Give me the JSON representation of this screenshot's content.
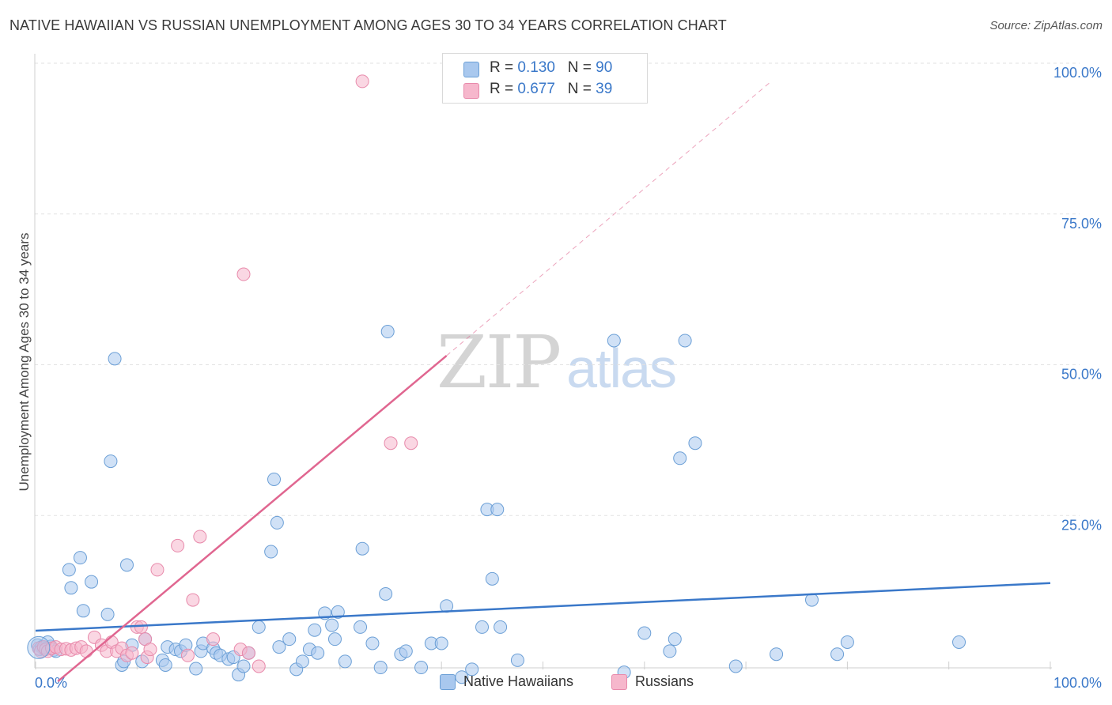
{
  "title": "NATIVE HAWAIIAN VS RUSSIAN UNEMPLOYMENT AMONG AGES 30 TO 34 YEARS CORRELATION CHART",
  "source": "Source: ZipAtlas.com",
  "watermark": {
    "zip": "ZIP",
    "atlas": "atlas"
  },
  "legend": {
    "r_label": "R =",
    "n_label": "N =",
    "rows": [
      {
        "name": "Native Hawaiians",
        "r": "0.130",
        "n": "90"
      },
      {
        "name": "Russians",
        "r": "0.677",
        "n": "39"
      }
    ]
  },
  "colors": {
    "blue_fill": "#a9c8ee",
    "blue_stroke": "#6b9fd6",
    "blue_line": "#3a78c9",
    "pink_fill": "#f6b7cc",
    "pink_stroke": "#e88aab",
    "pink_line": "#e06690",
    "grid": "#e2e2e2",
    "tick_label": "#3a78c9"
  },
  "chart_data": {
    "type": "scatter",
    "title": "NATIVE HAWAIIAN VS RUSSIAN UNEMPLOYMENT AMONG AGES 30 TO 34 YEARS CORRELATION CHART",
    "xlabel": "",
    "ylabel": "Unemployment Among Ages 30 to 34 years",
    "xlim": [
      0,
      100
    ],
    "ylim": [
      0,
      100
    ],
    "x_tick_labels": [
      "0.0%",
      "100.0%"
    ],
    "y_ticks": [
      25,
      50,
      75,
      100
    ],
    "y_tick_labels": [
      "25.0%",
      "50.0%",
      "75.0%",
      "100.0%"
    ],
    "grid": true,
    "series": [
      {
        "name": "Native Hawaiians",
        "color": "blue",
        "trend": {
          "x0": 0,
          "y0": 5.9,
          "x1": 100,
          "y1": 13.8,
          "dash_to": null
        },
        "points": [
          [
            0.2,
            3.5
          ],
          [
            0.4,
            2.8
          ],
          [
            0.6,
            3.2
          ],
          [
            0.8,
            2.9
          ],
          [
            1.0,
            3.0
          ],
          [
            1.5,
            3.3
          ],
          [
            1.8,
            2.7
          ],
          [
            2.0,
            2.5
          ],
          [
            3.3,
            16.0
          ],
          [
            3.5,
            13.0
          ],
          [
            4.4,
            18.0
          ],
          [
            4.7,
            9.2
          ],
          [
            5.5,
            14.0
          ],
          [
            7.1,
            8.6
          ],
          [
            7.4,
            34.0
          ],
          [
            7.8,
            51.0
          ],
          [
            8.5,
            0.2
          ],
          [
            8.7,
            0.8
          ],
          [
            9.0,
            16.8
          ],
          [
            9.5,
            3.5
          ],
          [
            10.5,
            0.8
          ],
          [
            10.8,
            4.5
          ],
          [
            12.5,
            1.0
          ],
          [
            12.8,
            0.2
          ],
          [
            13.0,
            3.2
          ],
          [
            13.8,
            2.8
          ],
          [
            14.3,
            2.5
          ],
          [
            14.8,
            3.5
          ],
          [
            15.8,
            -0.4
          ],
          [
            16.3,
            2.5
          ],
          [
            16.5,
            3.8
          ],
          [
            17.5,
            3.0
          ],
          [
            17.8,
            2.2
          ],
          [
            18.2,
            1.8
          ],
          [
            19.0,
            1.2
          ],
          [
            19.5,
            1.5
          ],
          [
            20.0,
            -1.4
          ],
          [
            20.5,
            0.0
          ],
          [
            21.0,
            2.2
          ],
          [
            22.0,
            6.5
          ],
          [
            23.2,
            19.0
          ],
          [
            23.5,
            31.0
          ],
          [
            23.8,
            23.8
          ],
          [
            24.0,
            3.2
          ],
          [
            25.0,
            4.5
          ],
          [
            25.7,
            -0.5
          ],
          [
            26.3,
            0.8
          ],
          [
            27.0,
            2.8
          ],
          [
            27.5,
            6.0
          ],
          [
            27.8,
            2.2
          ],
          [
            28.5,
            8.8
          ],
          [
            29.2,
            6.8
          ],
          [
            29.5,
            4.5
          ],
          [
            29.8,
            9.0
          ],
          [
            30.5,
            0.8
          ],
          [
            32.0,
            6.5
          ],
          [
            32.2,
            19.5
          ],
          [
            33.2,
            3.8
          ],
          [
            34.0,
            -0.2
          ],
          [
            34.5,
            12.0
          ],
          [
            34.7,
            55.5
          ],
          [
            36.0,
            2.0
          ],
          [
            36.5,
            2.5
          ],
          [
            38.0,
            -0.2
          ],
          [
            39.0,
            3.8
          ],
          [
            40.0,
            3.8
          ],
          [
            40.5,
            10.0
          ],
          [
            42.0,
            -1.8
          ],
          [
            43.0,
            -0.5
          ],
          [
            44.0,
            6.5
          ],
          [
            44.5,
            26.0
          ],
          [
            45.0,
            14.5
          ],
          [
            45.5,
            26.0
          ],
          [
            45.8,
            6.5
          ],
          [
            47.5,
            1.0
          ],
          [
            57.0,
            54.0
          ],
          [
            58.0,
            -1.0
          ],
          [
            60.0,
            5.5
          ],
          [
            62.5,
            2.5
          ],
          [
            63.0,
            4.5
          ],
          [
            64.0,
            54.0
          ],
          [
            63.5,
            34.5
          ],
          [
            65.0,
            37.0
          ],
          [
            69.0,
            0.0
          ],
          [
            73.0,
            2.0
          ],
          [
            76.5,
            11.0
          ],
          [
            79.0,
            2.0
          ],
          [
            80.0,
            4.0
          ],
          [
            91.0,
            4.0
          ],
          [
            1.2,
            4.0
          ]
        ]
      },
      {
        "name": "Russians",
        "color": "pink",
        "trend": {
          "x0": 2.2,
          "y0": -2.5,
          "x1": 40.5,
          "y1": 51.5,
          "dash_to": {
            "x": 72.5,
            "y": 97
          }
        },
        "points": [
          [
            0.3,
            3.0
          ],
          [
            0.5,
            2.5
          ],
          [
            0.8,
            3.2
          ],
          [
            1.0,
            2.8
          ],
          [
            1.2,
            2.5
          ],
          [
            1.6,
            3.0
          ],
          [
            2.0,
            3.2
          ],
          [
            2.5,
            2.8
          ],
          [
            3.0,
            2.9
          ],
          [
            3.5,
            2.7
          ],
          [
            4.0,
            3.0
          ],
          [
            4.5,
            3.2
          ],
          [
            5.0,
            2.5
          ],
          [
            5.8,
            4.8
          ],
          [
            6.5,
            3.5
          ],
          [
            7.0,
            2.5
          ],
          [
            7.5,
            4.0
          ],
          [
            8.0,
            2.5
          ],
          [
            8.5,
            3.0
          ],
          [
            9.0,
            1.8
          ],
          [
            9.5,
            2.2
          ],
          [
            10.0,
            6.5
          ],
          [
            10.4,
            6.5
          ],
          [
            10.8,
            4.5
          ],
          [
            11.0,
            1.5
          ],
          [
            11.3,
            2.8
          ],
          [
            12.0,
            16.0
          ],
          [
            14.0,
            20.0
          ],
          [
            15.0,
            1.8
          ],
          [
            15.5,
            11.0
          ],
          [
            16.2,
            21.5
          ],
          [
            17.5,
            4.5
          ],
          [
            20.2,
            2.8
          ],
          [
            20.5,
            65.0
          ],
          [
            21.0,
            2.2
          ],
          [
            22.0,
            0.0
          ],
          [
            35.0,
            37.0
          ],
          [
            37.0,
            37.0
          ],
          [
            32.2,
            97.0
          ]
        ]
      }
    ]
  }
}
